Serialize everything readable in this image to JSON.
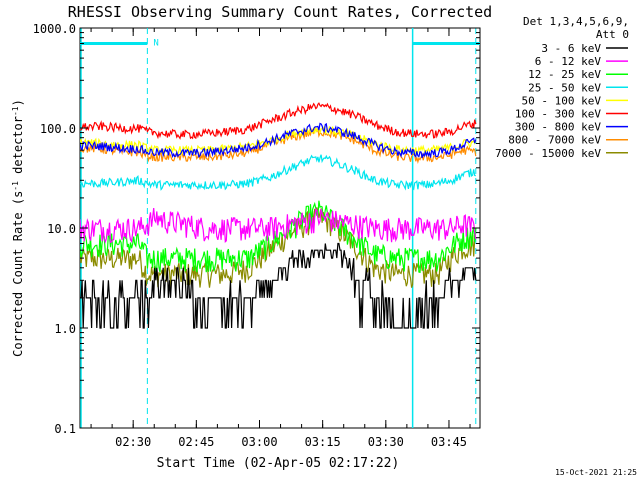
{
  "chart_data": {
    "type": "line",
    "title": "RHESSI Observing Summary Count Rates, Corrected",
    "xlabel": "Start Time (02-Apr-05 02:17:22)",
    "ylabel": "Corrected Count Rate (s",
    "ylabel_sup1": "-1",
    "ylabel_mid": " detector",
    "ylabel_sup2": "-1",
    "ylabel_end": ")",
    "yscale": "log",
    "ylim": [
      0.1,
      1000
    ],
    "xlim_minutes": [
      0,
      95
    ],
    "x_ticks": [
      {
        "label": "02:30",
        "minute": 12.63
      },
      {
        "label": "02:45",
        "minute": 27.63
      },
      {
        "label": "03:00",
        "minute": 42.63
      },
      {
        "label": "03:15",
        "minute": 57.63
      },
      {
        "label": "03:30",
        "minute": 72.63
      },
      {
        "label": "03:45",
        "minute": 87.63
      }
    ],
    "y_ticks": [
      {
        "label": "0.1",
        "value": 0.1
      },
      {
        "label": "1.0",
        "value": 1
      },
      {
        "label": "10.0",
        "value": 10
      },
      {
        "label": "100.0",
        "value": 100
      },
      {
        "label": "1000.0",
        "value": 1000
      }
    ],
    "legend_header": [
      "Det 1,3,4,5,6,9,",
      "Att 0"
    ],
    "legend_position": "right",
    "night_marker": "N",
    "markers": {
      "night_bars": [
        [
          0,
          16
        ],
        [
          79,
          95
        ]
      ],
      "night_bar_value": 700,
      "dashed_lines_minutes": [
        16,
        94
      ],
      "solid_lines_minutes": [
        0,
        79
      ],
      "color": "#00e5ee"
    },
    "footer_date": "15-Oct-2021 21:25",
    "series": [
      {
        "name": "3 - 6 keV",
        "color": "#000000",
        "x": [
          0,
          5,
          10,
          14,
          16,
          18,
          20,
          23,
          26,
          28,
          30,
          32,
          35,
          38,
          40,
          42,
          45,
          48,
          50,
          52,
          55,
          57,
          60,
          62,
          64,
          66,
          67,
          68,
          70,
          72,
          74,
          76,
          77,
          78,
          79,
          80,
          81,
          82,
          84,
          86,
          88,
          90,
          92,
          93,
          94
        ],
        "values": [
          2.5,
          2.0,
          2.5,
          2.0,
          1.4,
          3.5,
          3.0,
          3.0,
          2.5,
          2.0,
          1.6,
          2.0,
          1.5,
          2.0,
          1.8,
          2.5,
          3.0,
          4.0,
          4.5,
          5.0,
          5.5,
          6.0,
          6.0,
          5.5,
          4.5,
          3.0,
          2.0,
          3.0,
          2.0,
          1.5,
          1.5,
          1.3,
          1.1,
          0.8,
          1.0,
          1.1,
          1.3,
          1.6,
          2.0,
          2.4,
          2.8,
          3.2,
          3.6,
          4.0,
          4.0
        ]
      },
      {
        "name": "6 - 12 keV",
        "color": "#ff00ff",
        "x": [
          0,
          5,
          10,
          14,
          16,
          18,
          20,
          25,
          30,
          35,
          40,
          45,
          50,
          55,
          57,
          60,
          65,
          70,
          75,
          79,
          82,
          85,
          88,
          91,
          94
        ],
        "values": [
          10,
          10,
          10,
          10,
          11,
          13,
          12,
          11,
          10,
          10,
          10,
          10,
          11,
          12,
          13,
          12,
          11,
          10,
          10,
          10,
          10,
          10,
          10,
          11,
          10
        ]
      },
      {
        "name": "12 - 25 keV",
        "color": "#00ff00",
        "x": [
          0,
          5,
          10,
          14,
          16,
          18,
          20,
          25,
          30,
          35,
          40,
          45,
          50,
          55,
          57,
          60,
          65,
          70,
          75,
          79,
          82,
          85,
          88,
          91,
          94
        ],
        "values": [
          7,
          7,
          7,
          7,
          5,
          5,
          5,
          5,
          5,
          5,
          5,
          7,
          10,
          14,
          15,
          12,
          8,
          5.5,
          5,
          5,
          5,
          5,
          6.5,
          8,
          9
        ]
      },
      {
        "name": "25 - 50 keV",
        "color": "#00e5ee",
        "x": [
          0,
          5,
          10,
          14,
          16,
          18,
          20,
          25,
          30,
          35,
          40,
          45,
          50,
          55,
          57,
          60,
          65,
          70,
          75,
          79,
          82,
          85,
          88,
          91,
          94
        ],
        "values": [
          28,
          28,
          29,
          30,
          28,
          27,
          27,
          27,
          27,
          27,
          28,
          32,
          40,
          48,
          50,
          46,
          38,
          30,
          27,
          27,
          27,
          28,
          30,
          34,
          37
        ]
      },
      {
        "name": "50 - 100 keV",
        "color": "#ffff00",
        "x": [
          0,
          5,
          10,
          14,
          16,
          18,
          20,
          25,
          30,
          35,
          40,
          45,
          50,
          55,
          57,
          60,
          65,
          70,
          75,
          79,
          82,
          85,
          88,
          91,
          94
        ],
        "values": [
          72,
          70,
          68,
          68,
          62,
          60,
          60,
          60,
          60,
          62,
          66,
          74,
          88,
          96,
          98,
          94,
          84,
          70,
          62,
          60,
          60,
          61,
          64,
          70,
          72
        ]
      },
      {
        "name": "100 - 300 keV",
        "color": "#ff0000",
        "x": [
          0,
          5,
          10,
          14,
          16,
          18,
          20,
          25,
          30,
          35,
          40,
          45,
          50,
          55,
          57,
          60,
          65,
          70,
          75,
          79,
          82,
          85,
          88,
          91,
          94
        ],
        "values": [
          102,
          104,
          100,
          99,
          92,
          90,
          88,
          86,
          88,
          92,
          98,
          118,
          140,
          162,
          165,
          158,
          135,
          108,
          92,
          88,
          87,
          88,
          92,
          104,
          112
        ]
      },
      {
        "name": "300 - 800 keV",
        "color": "#0000ff",
        "x": [
          0,
          5,
          10,
          14,
          16,
          18,
          20,
          25,
          30,
          35,
          40,
          45,
          50,
          55,
          57,
          60,
          65,
          70,
          75,
          79,
          82,
          85,
          88,
          91,
          94
        ],
        "values": [
          67,
          66,
          63,
          62,
          58,
          57,
          57,
          56,
          57,
          60,
          64,
          74,
          88,
          100,
          102,
          98,
          84,
          68,
          58,
          56,
          55,
          57,
          60,
          68,
          75
        ]
      },
      {
        "name": "800 - 7000 keV",
        "color": "#ff8c00",
        "x": [
          0,
          5,
          10,
          14,
          16,
          18,
          20,
          25,
          30,
          35,
          40,
          45,
          50,
          55,
          57,
          60,
          65,
          70,
          75,
          79,
          82,
          85,
          88,
          91,
          94
        ],
        "values": [
          63,
          62,
          58,
          57,
          53,
          51,
          51,
          51,
          51,
          53,
          57,
          68,
          80,
          90,
          92,
          88,
          76,
          60,
          52,
          50,
          50,
          51,
          54,
          60,
          58
        ]
      },
      {
        "name": "7000 - 15000 keV",
        "color": "#8b8b00",
        "x": [
          0,
          5,
          10,
          14,
          16,
          18,
          20,
          25,
          30,
          35,
          40,
          45,
          50,
          55,
          57,
          60,
          65,
          70,
          75,
          79,
          82,
          85,
          88,
          91,
          94
        ],
        "values": [
          5,
          5,
          5,
          5,
          3.5,
          3.5,
          3.5,
          3.5,
          3.5,
          3.5,
          4,
          6,
          9,
          12,
          13,
          11,
          7,
          4,
          3.5,
          3.5,
          3.5,
          3.5,
          5,
          6.5,
          7
        ]
      }
    ]
  }
}
